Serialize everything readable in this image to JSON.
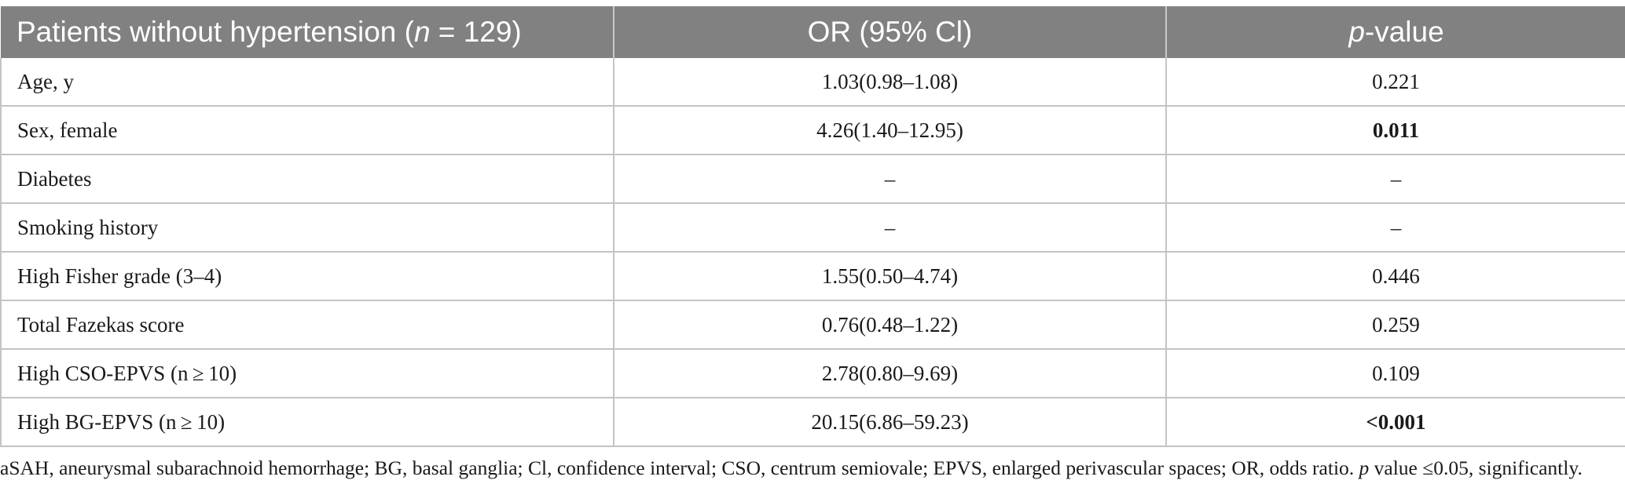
{
  "table": {
    "headers": {
      "col1_prefix": "Patients without hypertension (",
      "col1_n_symbol": "n",
      "col1_suffix": " = 129)",
      "col2": "OR (95% Cl)",
      "col3_p_symbol": "p",
      "col3_suffix": "-value"
    },
    "rows": [
      {
        "label": "Age, y",
        "or_ci": "1.03(0.98–1.08)",
        "p_value": "0.221",
        "p_bold": false
      },
      {
        "label": "Sex, female",
        "or_ci": "4.26(1.40–12.95)",
        "p_value": "0.011",
        "p_bold": true
      },
      {
        "label": "Diabetes",
        "or_ci": "–",
        "p_value": "–",
        "p_bold": false
      },
      {
        "label": "Smoking history",
        "or_ci": "–",
        "p_value": "–",
        "p_bold": false
      },
      {
        "label": "High Fisher grade (3–4)",
        "or_ci": "1.55(0.50–4.74)",
        "p_value": "0.446",
        "p_bold": false
      },
      {
        "label": "Total Fazekas score",
        "or_ci": "0.76(0.48–1.22)",
        "p_value": "0.259",
        "p_bold": false
      },
      {
        "label": "High CSO-EPVS (n ≥ 10)",
        "or_ci": "2.78(0.80–9.69)",
        "p_value": "0.109",
        "p_bold": false
      },
      {
        "label": "High BG-EPVS (n ≥ 10)",
        "or_ci": "20.15(6.86–59.23)",
        "p_value": "<0.001",
        "p_bold": true
      }
    ]
  },
  "footnote": {
    "part1": "aSAH, aneurysmal subarachnoid hemorrhage; BG, basal ganglia; Cl, confidence interval; CSO, centrum semiovale; EPVS, enlarged perivascular spaces; OR, odds ratio. ",
    "p_symbol": "p",
    "part2": " value ≤0.05, significantly."
  }
}
